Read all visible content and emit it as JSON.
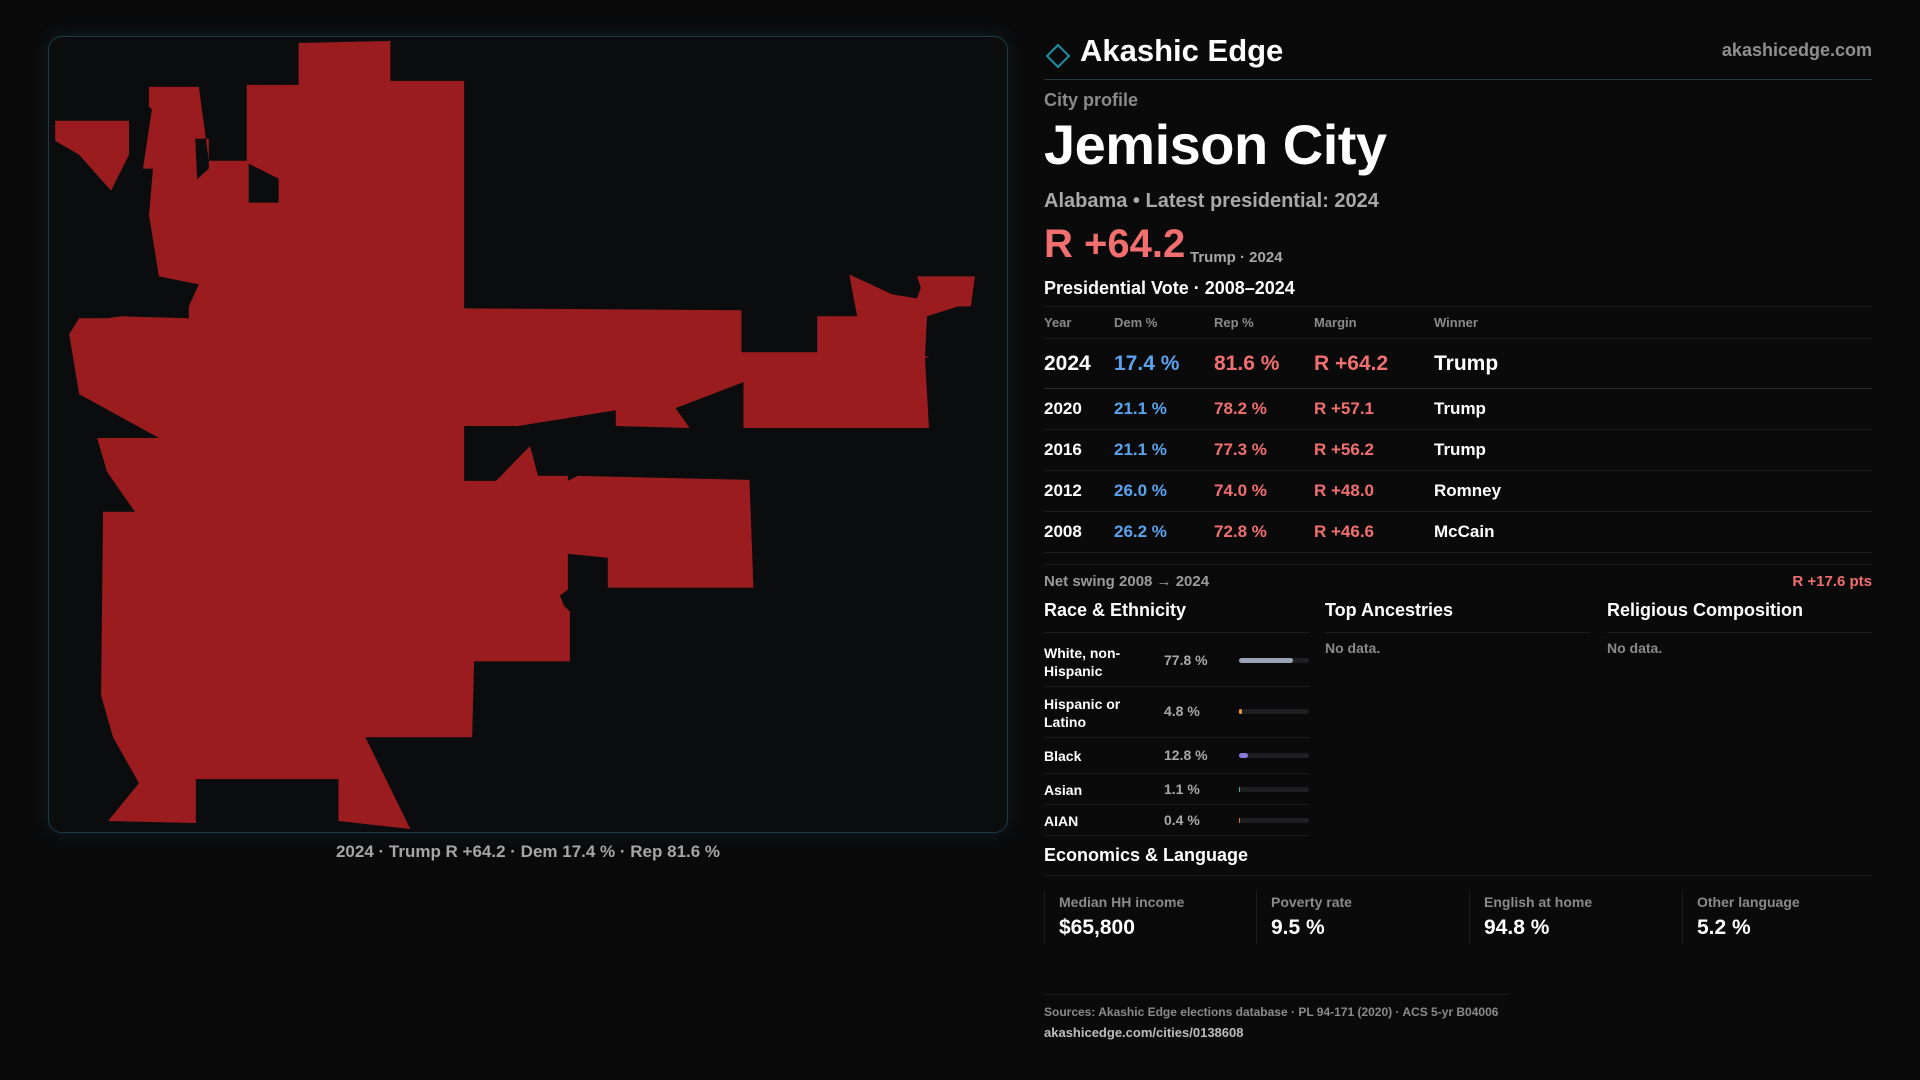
{
  "brand": {
    "name": "Akashic Edge",
    "url": "akashicedge.com",
    "accent": "#1b8fa0"
  },
  "profile": {
    "eyebrow": "City profile",
    "city": "Jemison City",
    "subtitle": "Alabama • Latest presidential: 2024",
    "margin": "R +64.2",
    "margin_note": "Trump · 2024"
  },
  "map": {
    "caption": "2024 · Trump R +64.2 · Dem 17.4 % · Rep 81.6 %",
    "fill_color": "#9b1c1f"
  },
  "vote_table": {
    "title": "Presidential Vote · 2008–2024",
    "headers": [
      "Year",
      "Dem %",
      "Rep %",
      "Margin",
      "Winner"
    ],
    "rows": [
      {
        "year": "2024",
        "dem": "17.4 %",
        "rep": "81.6 %",
        "margin": "R +64.2",
        "winner": "Trump"
      },
      {
        "year": "2020",
        "dem": "21.1 %",
        "rep": "78.2 %",
        "margin": "R +57.1",
        "winner": "Trump"
      },
      {
        "year": "2016",
        "dem": "21.1 %",
        "rep": "77.3 %",
        "margin": "R +56.2",
        "winner": "Trump"
      },
      {
        "year": "2012",
        "dem": "26.0 %",
        "rep": "74.0 %",
        "margin": "R +48.0",
        "winner": "Romney"
      },
      {
        "year": "2008",
        "dem": "26.2 %",
        "rep": "72.8 %",
        "margin": "R +46.6",
        "winner": "McCain"
      }
    ]
  },
  "swing": {
    "label": "Net swing 2008 → 2024",
    "value": "R +17.6 pts"
  },
  "race": {
    "title": "Race & Ethnicity",
    "rows": [
      {
        "label": "White, non-Hispanic",
        "pct": "77.8 %",
        "value": 77.8,
        "color": "#9aa3b5"
      },
      {
        "label": "Hispanic or Latino",
        "pct": "4.8 %",
        "value": 4.8,
        "color": "#e59a2e"
      },
      {
        "label": "Black",
        "pct": "12.8 %",
        "value": 12.8,
        "color": "#8d7ae0"
      },
      {
        "label": "Asian",
        "pct": "1.1 %",
        "value": 1.1,
        "color": "#3fb4a6"
      },
      {
        "label": "AIAN",
        "pct": "0.4 %",
        "value": 0.4,
        "color": "#d9763a"
      }
    ]
  },
  "ancestries": {
    "title": "Top Ancestries",
    "empty": "No data."
  },
  "religion": {
    "title": "Religious Composition",
    "empty": "No data."
  },
  "economics": {
    "title": "Economics & Language",
    "stats": [
      {
        "label": "Median HH income",
        "value": "$65,800"
      },
      {
        "label": "Poverty rate",
        "value": "9.5 %"
      },
      {
        "label": "English at home",
        "value": "94.8 %"
      },
      {
        "label": "Other language",
        "value": "5.2 %"
      }
    ]
  },
  "sources": {
    "line": "Sources: Akashic Edge elections database · PL 94-171 (2020) · ACS 5-yr B04006",
    "url": "akashicedge.com/cities/0138608"
  }
}
